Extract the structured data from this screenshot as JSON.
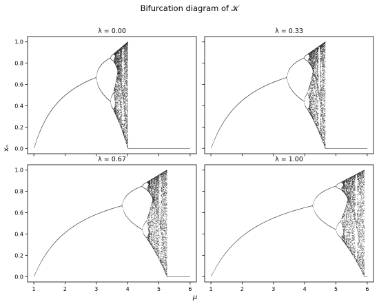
{
  "figure": {
    "suptitle": "Bifurcation diagram of 𝒦",
    "xlabel": "μ",
    "ylabel": "xₙ"
  },
  "chart_data": [
    {
      "type": "scatter",
      "title": "λ = 0.00",
      "lambda": 0.0,
      "xlim": [
        0.8,
        6.2
      ],
      "ylim": [
        -0.05,
        1.05
      ],
      "xticks": [
        1,
        2,
        3,
        4,
        5,
        6
      ],
      "yticks": [
        0.0,
        0.2,
        0.4,
        0.6,
        0.8,
        1.0
      ],
      "show_x_tick_labels": false,
      "show_y_tick_labels": true,
      "features": {
        "first_bifurcation": 3.0,
        "chaos_end": 4.0,
        "x_max": 1.0
      }
    },
    {
      "type": "scatter",
      "title": "λ = 0.33",
      "lambda": 0.33,
      "xlim": [
        0.8,
        6.2
      ],
      "ylim": [
        -0.05,
        1.05
      ],
      "xticks": [
        1,
        2,
        3,
        4,
        5,
        6
      ],
      "yticks": [
        0.0,
        0.2,
        0.4,
        0.6,
        0.8,
        1.0
      ],
      "show_x_tick_labels": false,
      "show_y_tick_labels": false,
      "features": {
        "first_bifurcation": 3.4,
        "chaos_end": 4.65,
        "x_max": 1.0
      }
    },
    {
      "type": "scatter",
      "title": "λ = 0.67",
      "lambda": 0.67,
      "xlim": [
        0.8,
        6.2
      ],
      "ylim": [
        -0.05,
        1.05
      ],
      "xticks": [
        1,
        2,
        3,
        4,
        5,
        6
      ],
      "yticks": [
        0.0,
        0.2,
        0.4,
        0.6,
        0.8,
        1.0
      ],
      "show_x_tick_labels": true,
      "show_y_tick_labels": true,
      "features": {
        "first_bifurcation": 3.85,
        "chaos_end": 5.25,
        "x_max": 1.0
      }
    },
    {
      "type": "scatter",
      "title": "λ = 1.00",
      "lambda": 1.0,
      "xlim": [
        0.8,
        6.2
      ],
      "ylim": [
        -0.05,
        1.05
      ],
      "xticks": [
        1,
        2,
        3,
        4,
        5,
        6
      ],
      "yticks": [
        0.0,
        0.2,
        0.4,
        0.6,
        0.8,
        1.0
      ],
      "show_x_tick_labels": true,
      "show_y_tick_labels": false,
      "features": {
        "first_bifurcation": 4.2,
        "chaos_end": 5.9,
        "x_max": 1.0
      }
    }
  ]
}
